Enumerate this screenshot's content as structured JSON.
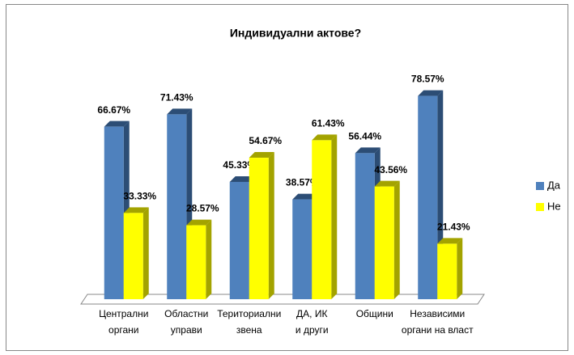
{
  "chart_data": {
    "type": "bar3d",
    "title": "Индивидуални актове?",
    "categories": [
      [
        "Централни",
        "органи"
      ],
      [
        "Областни",
        "управи"
      ],
      [
        "Териториални",
        "звена"
      ],
      [
        "ДА, ИК",
        "и други"
      ],
      [
        "Общини"
      ],
      [
        "Независими",
        "органи на власт"
      ]
    ],
    "series": [
      {
        "name": "Да",
        "color": "#4f81bd",
        "side": "#2c4d75",
        "values": [
          66.67,
          71.43,
          45.33,
          38.57,
          56.44,
          78.57
        ],
        "value_labels": [
          "66.67%",
          "71.43%",
          "45.33%",
          "38.57%",
          "56.44%",
          "78.57%"
        ]
      },
      {
        "name": "Не",
        "color": "#ffff00",
        "side": "#a3a300",
        "values": [
          33.33,
          28.57,
          54.67,
          61.43,
          43.56,
          21.43
        ],
        "value_labels": [
          "33.33%",
          "28.57%",
          "54.67%",
          "61.43%",
          "43.56%",
          "21.43%"
        ]
      }
    ],
    "legend": "right"
  }
}
